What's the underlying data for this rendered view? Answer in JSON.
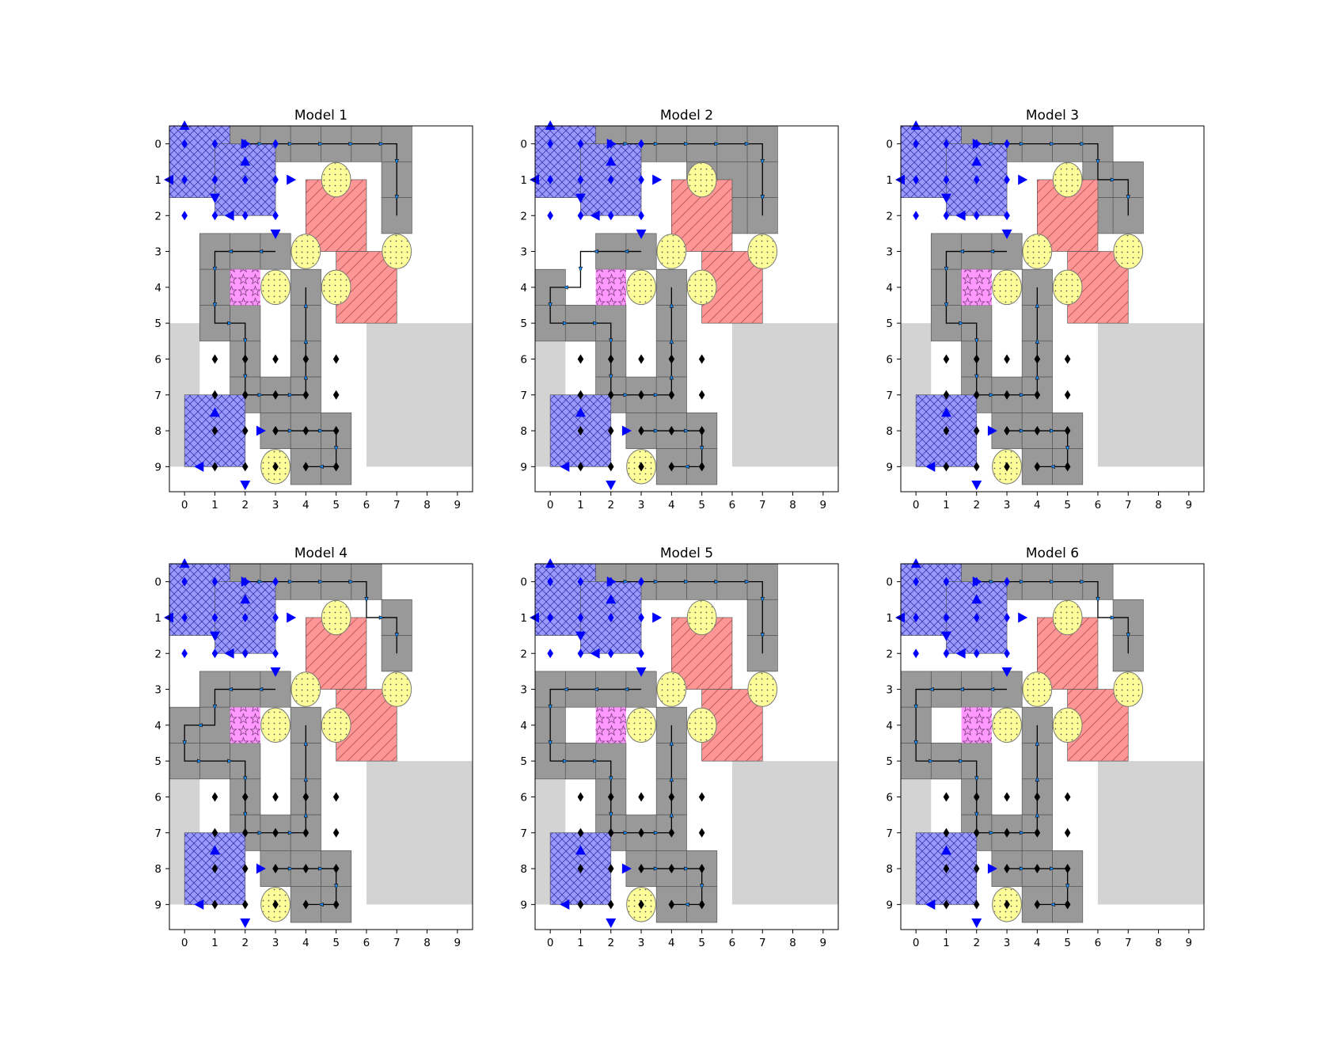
{
  "figure": {
    "background": "#ffffff"
  },
  "grid": {
    "x_ticks": [
      "0",
      "1",
      "2",
      "3",
      "4",
      "5",
      "6",
      "7",
      "8",
      "9"
    ],
    "y_ticks": [
      "0",
      "1",
      "2",
      "3",
      "4",
      "5",
      "6",
      "7",
      "8",
      "9"
    ]
  },
  "colors": {
    "blue_region": "#9999ff",
    "blue_hatch": "#3a3aa8",
    "gray_cell": "#999999",
    "light_gray": "#d3d3d3",
    "red_region": "#ff9696",
    "red_hatch": "#b05050",
    "yellow_oval": "#ffff99",
    "pink_star": "#ff99ff",
    "blue_marker": "#0000ff",
    "black_marker": "#000000",
    "path": "#000000"
  },
  "static": {
    "light_gray_rects": [
      [
        0,
        5.5,
        1,
        4
      ],
      [
        6.5,
        5.5,
        3.5,
        4
      ]
    ],
    "blue_regions": [
      [
        0,
        0,
        2,
        2
      ],
      [
        2,
        1,
        2,
        2
      ],
      [
        1,
        8,
        2,
        2
      ]
    ],
    "red_regions": [
      [
        4.5,
        1.5,
        2,
        2
      ],
      [
        5.5,
        3.5,
        2,
        2
      ]
    ],
    "yellow_ovals": [
      [
        5,
        1
      ],
      [
        4,
        3
      ],
      [
        7,
        3
      ],
      [
        3,
        4
      ],
      [
        5,
        4
      ],
      [
        3,
        9
      ]
    ],
    "pink_cells": [
      [
        2,
        4
      ]
    ],
    "gray_base": [
      [
        2,
        0
      ],
      [
        3,
        0
      ],
      [
        4,
        0
      ],
      [
        5,
        0
      ],
      [
        6,
        0
      ],
      [
        7,
        0
      ],
      [
        7,
        1
      ],
      [
        7,
        2
      ],
      [
        2,
        3
      ],
      [
        3,
        3
      ],
      [
        1,
        3
      ],
      [
        1,
        4
      ],
      [
        1,
        5
      ],
      [
        2,
        5
      ],
      [
        2,
        6
      ],
      [
        2,
        7
      ],
      [
        3,
        7
      ],
      [
        4,
        4
      ],
      [
        4,
        5
      ],
      [
        4,
        6
      ],
      [
        4,
        7
      ],
      [
        3,
        8
      ],
      [
        4,
        8
      ],
      [
        5,
        8
      ],
      [
        4,
        9
      ],
      [
        5,
        9
      ]
    ],
    "blue_diamonds": [
      [
        0,
        0
      ],
      [
        1,
        0
      ],
      [
        2,
        0
      ],
      [
        3,
        0
      ],
      [
        0,
        1
      ],
      [
        1,
        1
      ],
      [
        2,
        1
      ],
      [
        3,
        1
      ],
      [
        0,
        2
      ],
      [
        1,
        2
      ],
      [
        2,
        2
      ],
      [
        3,
        2
      ]
    ],
    "black_diamonds": [
      [
        1,
        6
      ],
      [
        2,
        6
      ],
      [
        3,
        6
      ],
      [
        4,
        6
      ],
      [
        5,
        6
      ],
      [
        1,
        7
      ],
      [
        2,
        7
      ],
      [
        3,
        7
      ],
      [
        4,
        7
      ],
      [
        5,
        7
      ],
      [
        1,
        8
      ],
      [
        2,
        8
      ],
      [
        3,
        8
      ],
      [
        4,
        8
      ],
      [
        5,
        8
      ],
      [
        1,
        9
      ],
      [
        2,
        9
      ],
      [
        3,
        9
      ],
      [
        4,
        9
      ],
      [
        5,
        9
      ]
    ],
    "blue_triangles": [
      {
        "x": 0,
        "y": -0.5,
        "dir": "up"
      },
      {
        "x": 2,
        "y": 0,
        "dir": "right"
      },
      {
        "x": -0.5,
        "y": 1,
        "dir": "left"
      },
      {
        "x": 1,
        "y": 1.5,
        "dir": "down"
      },
      {
        "x": 2,
        "y": 0.5,
        "dir": "up"
      },
      {
        "x": 3.5,
        "y": 1,
        "dir": "right"
      },
      {
        "x": 1.5,
        "y": 2,
        "dir": "left"
      },
      {
        "x": 3,
        "y": 2.5,
        "dir": "down"
      },
      {
        "x": 1,
        "y": 7.5,
        "dir": "up"
      },
      {
        "x": 2.5,
        "y": 8,
        "dir": "right"
      },
      {
        "x": 0.5,
        "y": 9,
        "dir": "left"
      },
      {
        "x": 2,
        "y": 9.5,
        "dir": "down"
      }
    ]
  },
  "panels": [
    {
      "title": "Model 1",
      "gray_extra": [],
      "paths": [
        [
          [
            2,
            0
          ],
          [
            7,
            0
          ],
          [
            7,
            2
          ]
        ],
        [
          [
            3,
            3
          ],
          [
            1,
            3
          ],
          [
            1,
            5
          ],
          [
            2,
            5
          ],
          [
            2,
            7
          ],
          [
            4,
            7
          ],
          [
            4,
            4
          ]
        ],
        [
          [
            3,
            8
          ],
          [
            5,
            8
          ],
          [
            5,
            9
          ],
          [
            4,
            9
          ]
        ]
      ]
    },
    {
      "title": "Model 2",
      "gray_extra": [
        [
          0,
          4
        ],
        [
          0,
          5
        ],
        [
          1,
          5
        ],
        [
          5,
          1
        ],
        [
          5,
          2
        ],
        [
          6,
          1
        ],
        [
          6,
          2
        ]
      ],
      "gray_remove": [
        [
          1,
          3
        ],
        [
          1,
          4
        ]
      ],
      "paths": [
        [
          [
            2,
            0
          ],
          [
            7,
            0
          ],
          [
            7,
            2
          ]
        ],
        [
          [
            3,
            3
          ],
          [
            1,
            3
          ],
          [
            1,
            4
          ],
          [
            0,
            4
          ],
          [
            0,
            5
          ],
          [
            2,
            5
          ],
          [
            2,
            7
          ],
          [
            4,
            7
          ],
          [
            4,
            4
          ]
        ],
        [
          [
            3,
            8
          ],
          [
            5,
            8
          ],
          [
            5,
            9
          ],
          [
            4,
            9
          ]
        ]
      ]
    },
    {
      "title": "Model 3",
      "gray_extra": [
        [
          6,
          1
        ],
        [
          6,
          2
        ]
      ],
      "gray_remove": [
        [
          7,
          0
        ]
      ],
      "paths": [
        [
          [
            2,
            0
          ],
          [
            6,
            0
          ],
          [
            6,
            1
          ],
          [
            7,
            1
          ],
          [
            7,
            2
          ]
        ],
        [
          [
            3,
            3
          ],
          [
            1,
            3
          ],
          [
            1,
            5
          ],
          [
            2,
            5
          ],
          [
            2,
            7
          ],
          [
            4,
            7
          ],
          [
            4,
            4
          ]
        ],
        [
          [
            3,
            8
          ],
          [
            5,
            8
          ],
          [
            5,
            9
          ],
          [
            4,
            9
          ]
        ]
      ]
    },
    {
      "title": "Model 4",
      "gray_extra": [
        [
          0,
          4
        ],
        [
          0,
          5
        ]
      ],
      "gray_remove": [
        [
          7,
          0
        ]
      ],
      "paths": [
        [
          [
            2,
            0
          ],
          [
            6,
            0
          ],
          [
            6,
            1
          ],
          [
            7,
            1
          ],
          [
            7,
            2
          ]
        ],
        [
          [
            3,
            3
          ],
          [
            1,
            3
          ],
          [
            1,
            4
          ],
          [
            0,
            4
          ],
          [
            0,
            5
          ],
          [
            2,
            5
          ],
          [
            2,
            7
          ],
          [
            4,
            7
          ],
          [
            4,
            4
          ]
        ],
        [
          [
            3,
            8
          ],
          [
            5,
            8
          ],
          [
            5,
            9
          ],
          [
            4,
            9
          ]
        ]
      ]
    },
    {
      "title": "Model 5",
      "gray_extra": [
        [
          0,
          3
        ],
        [
          0,
          4
        ],
        [
          0,
          5
        ],
        [
          1,
          5
        ]
      ],
      "gray_remove": [
        [
          1,
          4
        ]
      ],
      "paths": [
        [
          [
            2,
            0
          ],
          [
            7,
            0
          ],
          [
            7,
            2
          ]
        ],
        [
          [
            3,
            3
          ],
          [
            0,
            3
          ],
          [
            0,
            5
          ],
          [
            2,
            5
          ],
          [
            2,
            7
          ],
          [
            4,
            7
          ],
          [
            4,
            4
          ]
        ],
        [
          [
            3,
            8
          ],
          [
            5,
            8
          ],
          [
            5,
            9
          ],
          [
            4,
            9
          ]
        ]
      ]
    },
    {
      "title": "Model 6",
      "gray_extra": [
        [
          0,
          3
        ],
        [
          0,
          4
        ],
        [
          0,
          5
        ],
        [
          1,
          5
        ]
      ],
      "gray_remove": [
        [
          7,
          0
        ],
        [
          1,
          4
        ]
      ],
      "paths": [
        [
          [
            2,
            0
          ],
          [
            6,
            0
          ],
          [
            6,
            1
          ],
          [
            7,
            1
          ],
          [
            7,
            2
          ]
        ],
        [
          [
            3,
            3
          ],
          [
            0,
            3
          ],
          [
            0,
            5
          ],
          [
            2,
            5
          ],
          [
            2,
            7
          ],
          [
            4,
            7
          ],
          [
            4,
            4
          ]
        ],
        [
          [
            3,
            8
          ],
          [
            5,
            8
          ],
          [
            5,
            9
          ],
          [
            4,
            9
          ]
        ]
      ]
    }
  ]
}
